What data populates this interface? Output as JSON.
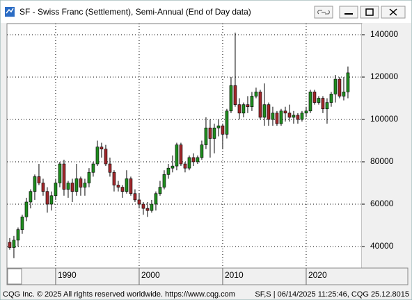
{
  "chart_data": {
    "type": "candlestick",
    "title": "SF - Swiss Franc (Settlement), Semi-Annual (End of Day data)",
    "x": [
      1984.5,
      1985,
      1985.5,
      1986,
      1986.5,
      1987,
      1987.5,
      1988,
      1988.5,
      1989,
      1989.5,
      1990,
      1990.5,
      1991,
      1991.5,
      1992,
      1992.5,
      1993,
      1993.5,
      1994,
      1994.5,
      1995,
      1995.5,
      1996,
      1996.5,
      1997,
      1997.5,
      1998,
      1998.5,
      1999,
      1999.5,
      2000,
      2000.5,
      2001,
      2001.5,
      2002,
      2002.5,
      2003,
      2003.5,
      2004,
      2004.5,
      2005,
      2005.5,
      2006,
      2006.5,
      2007,
      2007.5,
      2008,
      2008.5,
      2009,
      2009.5,
      2010,
      2010.5,
      2011,
      2011.5,
      2012,
      2012.5,
      2013,
      2013.5,
      2014,
      2014.5,
      2015,
      2015.5,
      2016,
      2016.5,
      2017,
      2017.5,
      2018,
      2018.5,
      2019,
      2019.5,
      2020,
      2020.5,
      2021,
      2021.5,
      2022,
      2022.5,
      2023,
      2023.5,
      2024,
      2024.5,
      2025
    ],
    "open": [
      42000,
      39500,
      43000,
      48000,
      54000,
      61000,
      66000,
      73000,
      70000,
      66000,
      60000,
      64000,
      70000,
      79000,
      67000,
      70000,
      66000,
      72000,
      68000,
      70000,
      75000,
      79000,
      87000,
      86000,
      79000,
      75000,
      69000,
      68000,
      66000,
      72000,
      65000,
      62000,
      60000,
      58000,
      57000,
      60000,
      65000,
      68000,
      74000,
      77000,
      78000,
      88000,
      79000,
      77000,
      82000,
      80000,
      82000,
      88000,
      96000,
      91000,
      96000,
      97000,
      93000,
      104000,
      116000,
      107000,
      103000,
      107000,
      106000,
      111000,
      113000,
      101000,
      107000,
      100000,
      103000,
      98000,
      104000,
      103000,
      101000,
      102000,
      100000,
      103000,
      104000,
      113000,
      108000,
      110000,
      105000,
      108000,
      112000,
      119000,
      111000,
      113000
    ],
    "high": [
      44000,
      45000,
      49000,
      55000,
      63000,
      67000,
      74000,
      79000,
      72000,
      68000,
      66000,
      72000,
      80000,
      81000,
      71000,
      72000,
      79000,
      73000,
      72000,
      77000,
      80000,
      90000,
      89000,
      88000,
      82000,
      76000,
      71000,
      69000,
      76000,
      73000,
      67000,
      65000,
      61000,
      61000,
      62000,
      66000,
      71000,
      76000,
      79000,
      83000,
      89000,
      89000,
      80000,
      83000,
      84000,
      83000,
      90000,
      101000,
      100000,
      98000,
      100000,
      98000,
      105000,
      120000,
      141000,
      110000,
      108000,
      111000,
      113000,
      115000,
      114000,
      117000,
      108000,
      106000,
      104000,
      105000,
      106000,
      107000,
      104000,
      103000,
      104000,
      106000,
      114000,
      114000,
      111000,
      111000,
      110000,
      113000,
      121000,
      120000,
      120000,
      125000
    ],
    "low": [
      38500,
      34500,
      40000,
      46000,
      52000,
      58000,
      62000,
      69000,
      64000,
      56000,
      57000,
      62000,
      68000,
      64000,
      63000,
      61000,
      64000,
      64000,
      64000,
      68000,
      73000,
      78000,
      82000,
      78000,
      73000,
      66000,
      66000,
      63000,
      65000,
      64000,
      61000,
      58000,
      55000,
      54000,
      56000,
      57000,
      64000,
      67000,
      72000,
      75000,
      76000,
      78000,
      75000,
      76000,
      78000,
      79000,
      81000,
      86000,
      82000,
      84000,
      92000,
      86000,
      91000,
      103000,
      106000,
      100000,
      101000,
      103000,
      104000,
      110000,
      100000,
      97000,
      97000,
      97000,
      97000,
      97000,
      99000,
      99000,
      98000,
      98000,
      99000,
      101000,
      103000,
      107000,
      107000,
      103000,
      98000,
      106000,
      108000,
      110000,
      109000,
      110000
    ],
    "close": [
      39500,
      43000,
      48000,
      54000,
      61000,
      66000,
      73000,
      70000,
      66000,
      60000,
      64000,
      70000,
      79000,
      67000,
      70000,
      66000,
      72000,
      68000,
      70000,
      75000,
      79000,
      87000,
      86000,
      79000,
      75000,
      69000,
      68000,
      66000,
      72000,
      65000,
      62000,
      60000,
      58000,
      57000,
      60000,
      65000,
      68000,
      74000,
      77000,
      78000,
      88000,
      79000,
      77000,
      82000,
      80000,
      82000,
      88000,
      96000,
      91000,
      96000,
      97000,
      93000,
      104000,
      116000,
      107000,
      103000,
      107000,
      106000,
      111000,
      113000,
      101000,
      107000,
      100000,
      103000,
      98000,
      104000,
      103000,
      101000,
      102000,
      100000,
      103000,
      104000,
      113000,
      108000,
      110000,
      105000,
      108000,
      112000,
      119000,
      111000,
      113000,
      122000
    ],
    "up_color": "#1e8c1e",
    "down_color": "#a0262a",
    "xlim": [
      1984.17,
      2026.67
    ],
    "xticks": [
      1990,
      2000,
      2010,
      2020
    ],
    "ylim": [
      29836,
      145246
    ],
    "yticks": [
      40000,
      60000,
      80000,
      100000,
      120000,
      140000
    ],
    "grid": true
  },
  "footer": {
    "left": "CQG Inc. © 2025 All rights reserved worldwide. https://www.cqg.com",
    "right": "SF,S | 06/14/2025 11:25:46, CQG 25.12.8015"
  }
}
